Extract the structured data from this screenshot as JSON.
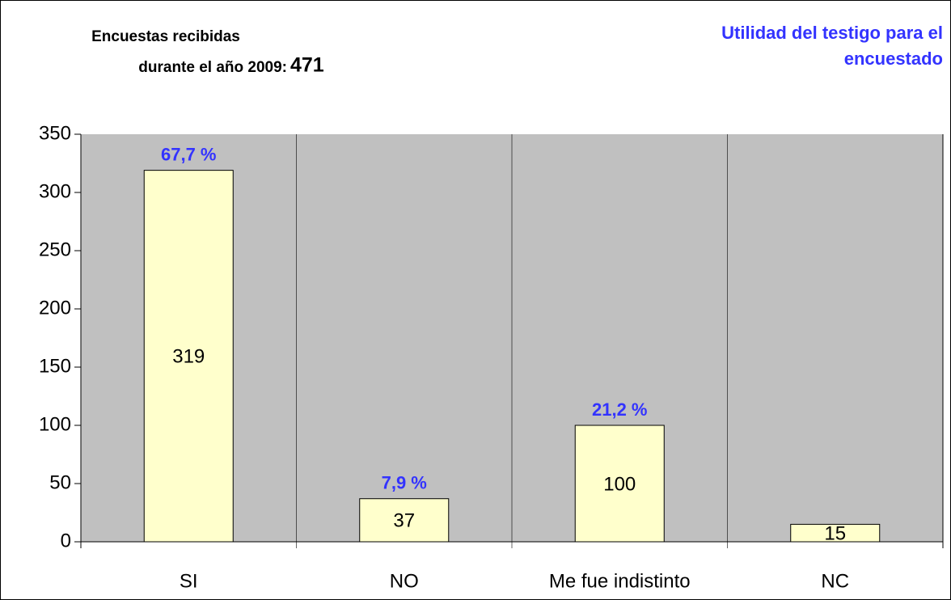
{
  "chart_data": {
    "type": "bar",
    "title": [
      "Utilidad del testigo para el",
      "encuestado"
    ],
    "note": {
      "lines": [
        "Encuestas recibidas",
        "durante el año 2009:"
      ],
      "total": 471
    },
    "categories": [
      "SI",
      "NO",
      "Me fue indistinto",
      "NC"
    ],
    "values": [
      319,
      37,
      100,
      15
    ],
    "percent_labels": [
      "67,7 %",
      "7,9 %",
      "21,2 %",
      null
    ],
    "color": "#ffffcc",
    "plot_background": "#c0c0c0",
    "ylim": [
      0,
      350
    ],
    "yticks": [
      0,
      50,
      100,
      150,
      200,
      250,
      300,
      350
    ]
  }
}
